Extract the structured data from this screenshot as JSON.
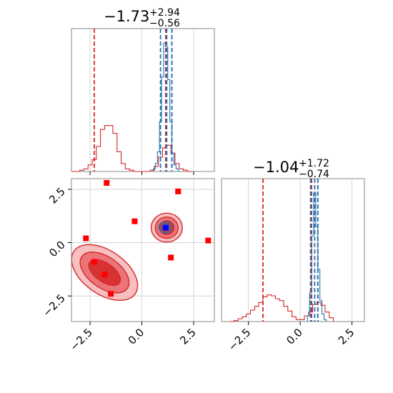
{
  "colors": {
    "red": "#d62728",
    "blue": "#1f77b4",
    "red_fill": "#f4a5a6",
    "red_fill_dark": "#d62728",
    "grid": "#cccccc",
    "axis": "#888888",
    "marker_blue": "#0000ff"
  },
  "chart_data": [
    {
      "type": "histogram",
      "panel": "top-left marginal (parameter 1)",
      "title": {
        "median": "−1.73",
        "plus": "+2.94",
        "minus": "−0.56"
      },
      "xlim": [
        -3.4,
        3.5
      ],
      "xticks": [
        -2.5,
        0.0,
        2.5
      ],
      "grid": true,
      "series": [
        {
          "color": "red",
          "bin_edges": [
            -3.4,
            -3.2,
            -3.0,
            -2.8,
            -2.6,
            -2.4,
            -2.2,
            -2.0,
            -1.8,
            -1.6,
            -1.4,
            -1.2,
            -1.0,
            -0.8,
            -0.6,
            -0.4,
            -0.2,
            0.0,
            0.2,
            0.4,
            0.6,
            0.8,
            1.0,
            1.2,
            1.4,
            1.6,
            1.8,
            2.0,
            2.2,
            2.4
          ],
          "counts": [
            0,
            0,
            1,
            2,
            5,
            9,
            19,
            32,
            35,
            35,
            29,
            15,
            6,
            2,
            1,
            0,
            0,
            0,
            0,
            1,
            4,
            11,
            18,
            20,
            14,
            6,
            2,
            1,
            0
          ]
        },
        {
          "color": "blue",
          "bin_edges": [
            0.55,
            0.65,
            0.75,
            0.85,
            0.95,
            1.05,
            1.15,
            1.25,
            1.35,
            1.45,
            1.55,
            1.65,
            1.75
          ],
          "counts": [
            2,
            6,
            15,
            38,
            72,
            98,
            95,
            70,
            38,
            14,
            5,
            2
          ]
        }
      ],
      "quantile_lines": [
        {
          "x": -2.3,
          "color": "red"
        },
        {
          "x": 1.15,
          "color": "red"
        },
        {
          "x": 1.45,
          "color": "red"
        },
        {
          "x": 0.9,
          "color": "blue"
        },
        {
          "x": 1.2,
          "color": "blue"
        },
        {
          "x": 1.45,
          "color": "blue"
        }
      ]
    },
    {
      "type": "histogram",
      "panel": "bottom-right marginal (parameter 2)",
      "title": {
        "median": "−1.04",
        "plus": "+1.72",
        "minus": "−0.74"
      },
      "xlim": [
        -3.8,
        3.1
      ],
      "xticks": [
        -2.5,
        0.0,
        2.5
      ],
      "grid": true,
      "series": [
        {
          "color": "red",
          "bin_edges": [
            -3.4,
            -3.2,
            -3.0,
            -2.8,
            -2.6,
            -2.4,
            -2.2,
            -2.0,
            -1.8,
            -1.6,
            -1.4,
            -1.2,
            -1.0,
            -0.8,
            -0.6,
            -0.4,
            -0.2,
            0.0,
            0.2,
            0.4,
            0.6,
            0.8,
            1.0,
            1.2,
            1.4,
            1.6
          ],
          "counts": [
            0,
            1,
            3,
            5,
            8,
            12,
            16,
            20,
            26,
            28,
            27,
            24,
            22,
            16,
            11,
            5,
            2,
            2,
            6,
            10,
            18,
            20,
            17,
            10,
            4
          ]
        },
        {
          "color": "blue",
          "bin_edges": [
            0.35,
            0.45,
            0.55,
            0.65,
            0.75,
            0.85,
            0.95,
            1.05,
            1.15,
            1.25
          ],
          "counts": [
            6,
            30,
            90,
            135,
            100,
            55,
            22,
            8,
            2
          ]
        }
      ],
      "quantile_lines": [
        {
          "x": -1.8,
          "color": "red"
        },
        {
          "x": 0.55,
          "color": "red"
        },
        {
          "x": 0.85,
          "color": "red"
        },
        {
          "x": 0.5,
          "color": "blue"
        },
        {
          "x": 0.7,
          "color": "blue"
        },
        {
          "x": 0.85,
          "color": "blue"
        }
      ]
    },
    {
      "type": "scatter",
      "panel": "bottom-left 2D posterior (parameter 1 vs parameter 2)",
      "xlim": [
        -3.4,
        3.5
      ],
      "ylim": [
        -3.7,
        3.0
      ],
      "xticks": [
        -2.5,
        0.0,
        2.5
      ],
      "yticks": [
        -2.5,
        0.0,
        2.5
      ],
      "grid": true,
      "contours": [
        {
          "color": "red",
          "center": [
            -1.8,
            -1.4
          ],
          "radii": [
            [
              1.05,
              1.75,
              -55
            ],
            [
              0.75,
              1.3,
              -55
            ],
            [
              0.45,
              0.85,
              -55
            ]
          ]
        },
        {
          "color": "red",
          "center": [
            1.2,
            0.7
          ],
          "radii": [
            [
              0.75,
              0.68,
              0
            ],
            [
              0.55,
              0.5,
              0
            ],
            [
              0.35,
              0.32,
              0
            ]
          ]
        },
        {
          "color": "blue",
          "center": [
            1.15,
            0.72
          ],
          "radii": [
            [
              0.33,
              0.26,
              0
            ],
            [
              0.2,
              0.16,
              0
            ]
          ]
        }
      ],
      "points_red_squares": [
        [
          -1.7,
          2.8
        ],
        [
          1.75,
          2.4
        ],
        [
          -0.35,
          1.0
        ],
        [
          3.2,
          0.1
        ],
        [
          -2.7,
          0.2
        ],
        [
          -2.3,
          -0.9
        ],
        [
          -1.8,
          -1.5
        ],
        [
          -1.5,
          -2.4
        ],
        [
          1.4,
          -0.7
        ]
      ],
      "point_blue_square": [
        1.15,
        0.7
      ]
    }
  ]
}
